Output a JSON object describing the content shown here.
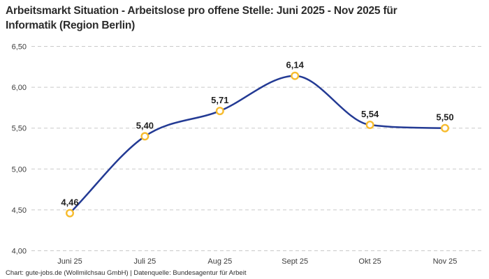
{
  "header": {
    "title_line1": "Arbeitsmarkt Situation - Arbeitslose pro offene Stelle: Juni 2025 - Nov 2025 für",
    "title_line2": "Informatik (Region Berlin)"
  },
  "chart_data": {
    "type": "line",
    "title": "Arbeitsmarkt Situation - Arbeitslose pro offene Stelle: Juni 2025 - Nov 2025 für Informatik (Region Berlin)",
    "categories": [
      "Juni 25",
      "Juli 25",
      "Aug 25",
      "Sept 25",
      "Okt 25",
      "Nov 25"
    ],
    "values": [
      4.46,
      5.4,
      5.71,
      6.14,
      5.54,
      5.5
    ],
    "value_labels": [
      "4,46",
      "5,40",
      "5,71",
      "6,14",
      "5,54",
      "5,50"
    ],
    "series_name": "Arbeitslose pro offene Stelle",
    "xlabel": "",
    "ylabel": "",
    "ylim": [
      4.0,
      6.5
    ],
    "ytick_values": [
      4.0,
      4.5,
      5.0,
      5.5,
      6.0,
      6.5
    ],
    "ytick_labels": [
      "4,00",
      "4,50",
      "5,00",
      "5,50",
      "6,00",
      "6,50"
    ],
    "grid": "horizontal-dashed",
    "legend": "none",
    "colors": {
      "line": "#233a94",
      "marker_ring": "#f7bc2f",
      "marker_fill": "#ffffff",
      "grid": "#c9c9c9",
      "axis_text": "#3c3c3c",
      "value_label_text": "#222222"
    }
  },
  "footer": {
    "credit": "Chart: gute-jobs.de (Wollmilchsau GmbH) | Datenquelle: Bundesagentur für Arbeit"
  }
}
